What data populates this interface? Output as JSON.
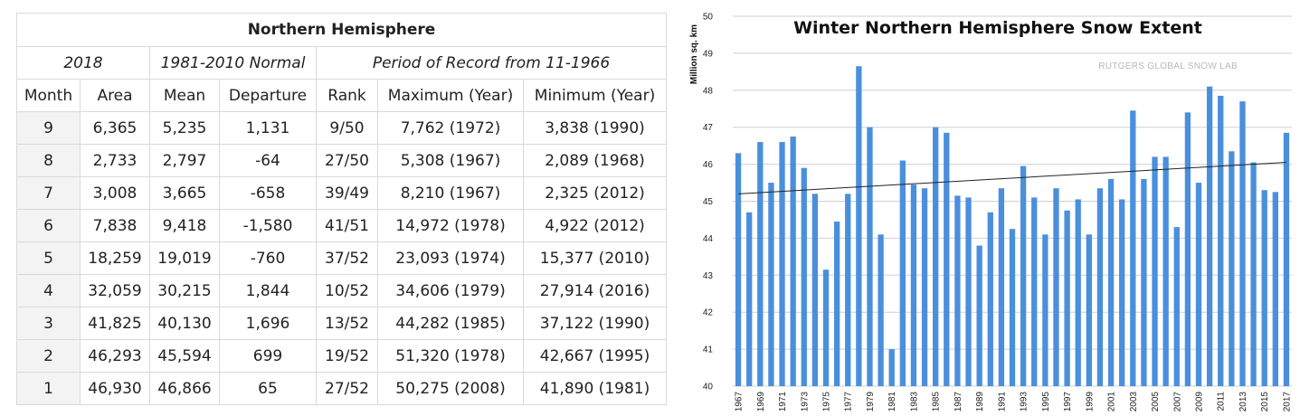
{
  "table": {
    "title": "Northern Hemisphere",
    "groups": {
      "year": "2018",
      "normal": "1981-2010 Normal",
      "record": "Period of Record from 11-1966"
    },
    "headers": [
      "Month",
      "Area",
      "Mean",
      "Departure",
      "Rank",
      "Maximum (Year)",
      "Minimum (Year)"
    ],
    "rows": [
      [
        "9",
        "6,365",
        "5,235",
        "1,131",
        "9/50",
        "7,762 (1972)",
        "3,838 (1990)"
      ],
      [
        "8",
        "2,733",
        "2,797",
        "-64",
        "27/50",
        "5,308 (1967)",
        "2,089 (1968)"
      ],
      [
        "7",
        "3,008",
        "3,665",
        "-658",
        "39/49",
        "8,210 (1967)",
        "2,325 (2012)"
      ],
      [
        "6",
        "7,838",
        "9,418",
        "-1,580",
        "41/51",
        "14,972 (1978)",
        "4,922 (2012)"
      ],
      [
        "5",
        "18,259",
        "19,019",
        "-760",
        "37/52",
        "23,093 (1974)",
        "15,377 (2010)"
      ],
      [
        "4",
        "32,059",
        "30,215",
        "1,844",
        "10/52",
        "34,606 (1979)",
        "27,914 (2016)"
      ],
      [
        "3",
        "41,825",
        "40,130",
        "1,696",
        "13/52",
        "44,282 (1985)",
        "37,122 (1990)"
      ],
      [
        "2",
        "46,293",
        "45,594",
        "699",
        "19/52",
        "51,320 (1978)",
        "42,667 (1995)"
      ],
      [
        "1",
        "46,930",
        "46,866",
        "65",
        "27/52",
        "50,275 (2008)",
        "41,890 (1981)"
      ]
    ]
  },
  "chart_data": {
    "type": "bar",
    "title": "Winter Northern Hemisphere Snow Extent",
    "watermark": "RUTGERS GLOBAL SNOW LAB",
    "ylabel": "Million sq. km",
    "xlabel": "",
    "ylim": [
      40,
      50
    ],
    "yticks": [
      40,
      41,
      42,
      43,
      44,
      45,
      46,
      47,
      48,
      49,
      50
    ],
    "grid": true,
    "bar_color": "#4a8fdc",
    "x_tick_labels": [
      "1967",
      "1969",
      "1971",
      "1973",
      "1975",
      "1977",
      "1979",
      "1981",
      "1983",
      "1985",
      "1987",
      "1989",
      "1991",
      "1993",
      "1995",
      "1997",
      "1999",
      "2001",
      "2003",
      "2005",
      "2007",
      "2009",
      "2011",
      "2013",
      "2015",
      "2017"
    ],
    "categories": [
      "1967",
      "1968",
      "1969",
      "1970",
      "1971",
      "1972",
      "1973",
      "1974",
      "1975",
      "1976",
      "1977",
      "1978",
      "1979",
      "1980",
      "1981",
      "1982",
      "1983",
      "1984",
      "1985",
      "1986",
      "1987",
      "1988",
      "1989",
      "1990",
      "1991",
      "1992",
      "1993",
      "1994",
      "1995",
      "1996",
      "1997",
      "1998",
      "1999",
      "2000",
      "2001",
      "2002",
      "2003",
      "2004",
      "2005",
      "2006",
      "2007",
      "2008",
      "2009",
      "2010",
      "2011",
      "2012",
      "2013",
      "2014",
      "2015",
      "2016",
      "2017"
    ],
    "values": [
      46.3,
      44.7,
      46.6,
      45.5,
      46.6,
      46.75,
      45.9,
      45.2,
      43.15,
      44.45,
      45.2,
      48.65,
      47.0,
      44.1,
      41.0,
      46.1,
      45.45,
      45.35,
      47.0,
      46.85,
      45.15,
      45.1,
      43.8,
      44.7,
      45.35,
      44.25,
      45.95,
      45.1,
      44.1,
      45.35,
      44.75,
      45.05,
      44.1,
      45.35,
      45.6,
      45.05,
      47.45,
      45.6,
      46.2,
      46.2,
      44.3,
      47.4,
      45.5,
      48.1,
      47.85,
      46.35,
      47.7,
      46.05,
      45.3,
      45.25,
      46.85
    ],
    "trend_line": {
      "start": 45.2,
      "end": 46.05
    }
  }
}
